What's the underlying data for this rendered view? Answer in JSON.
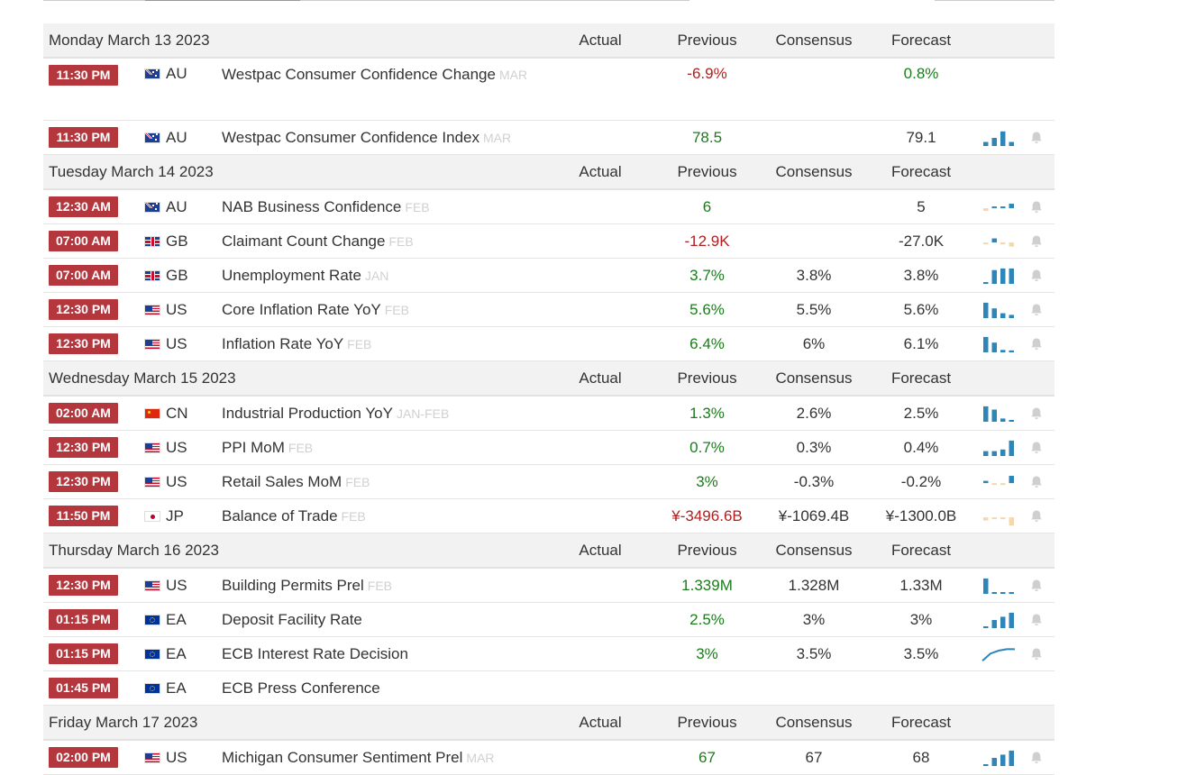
{
  "colors": {
    "accent_time": "#b5373e",
    "positive": "#1a7d1a",
    "negative": "#b01e1e",
    "chart_blue": "#2e86b8",
    "chart_peach": "#f5d7ae"
  },
  "days": [
    {
      "label": "Monday March 13 2023",
      "headers": {
        "actual": "Actual",
        "previous": "Previous",
        "consensus": "Consensus",
        "forecast": "Forecast"
      },
      "events": [
        {
          "time": "11:30 PM",
          "flag": "au",
          "country": "AU",
          "name": "Westpac Consumer Confidence Change",
          "ref": "MAR",
          "actual": "",
          "previous": "-6.9%",
          "previous_tone": "neg",
          "consensus": "",
          "forecast": "0.8%",
          "forecast_tone": "pos",
          "tall": true,
          "spark": [],
          "spark_kind": "none",
          "bell": false
        },
        {
          "time": "11:30 PM",
          "flag": "au",
          "country": "AU",
          "name": "Westpac Consumer Confidence Index",
          "ref": "MAR",
          "actual": "",
          "previous": "78.5",
          "previous_tone": "pos",
          "consensus": "",
          "forecast": "79.1",
          "forecast_tone": "neu",
          "spark": [
            0.25,
            0.5,
            0.9,
            0.25
          ],
          "spark_kind": "bars",
          "spark_colors": [
            "b",
            "b",
            "b",
            "b"
          ],
          "bell": true
        }
      ]
    },
    {
      "label": "Tuesday March 14 2023",
      "headers": {
        "actual": "Actual",
        "previous": "Previous",
        "consensus": "Consensus",
        "forecast": "Forecast"
      },
      "events": [
        {
          "time": "12:30 AM",
          "flag": "au",
          "country": "AU",
          "name": "NAB Business Confidence",
          "ref": "FEB",
          "actual": "",
          "previous": "6",
          "previous_tone": "pos",
          "consensus": "",
          "forecast": "5",
          "forecast_tone": "neu",
          "spark": [
            -0.3,
            0.2,
            0.0,
            0.5
          ],
          "spark_kind": "posneg",
          "bell": true
        },
        {
          "time": "07:00 AM",
          "flag": "gb",
          "country": "GB",
          "name": "Claimant Count Change",
          "ref": "FEB",
          "actual": "",
          "previous": "-12.9K",
          "previous_tone": "neg",
          "consensus": "",
          "forecast": "-27.0K",
          "forecast_tone": "neu",
          "spark": [
            -0.15,
            0.45,
            -0.2,
            -0.45
          ],
          "spark_kind": "posneg",
          "bell": true
        },
        {
          "time": "07:00 AM",
          "flag": "gb",
          "country": "GB",
          "name": "Unemployment Rate",
          "ref": "JAN",
          "actual": "",
          "previous": "3.7%",
          "previous_tone": "pos",
          "consensus": "3.8%",
          "forecast": "3.8%",
          "forecast_tone": "neu",
          "spark": [
            0.1,
            0.85,
            0.95,
            0.95
          ],
          "spark_kind": "bars",
          "spark_colors": [
            "b",
            "b",
            "b",
            "b"
          ],
          "bell": true
        },
        {
          "time": "12:30 PM",
          "flag": "us",
          "country": "US",
          "name": "Core Inflation Rate YoY",
          "ref": "FEB",
          "actual": "",
          "previous": "5.6%",
          "previous_tone": "pos",
          "consensus": "5.5%",
          "forecast": "5.6%",
          "forecast_tone": "neu",
          "spark": [
            0.95,
            0.6,
            0.3,
            0.2
          ],
          "spark_kind": "bars",
          "spark_colors": [
            "b",
            "b",
            "b",
            "b"
          ],
          "bell": true
        },
        {
          "time": "12:30 PM",
          "flag": "us",
          "country": "US",
          "name": "Inflation Rate YoY",
          "ref": "FEB",
          "actual": "",
          "previous": "6.4%",
          "previous_tone": "pos",
          "consensus": "6%",
          "forecast": "6.1%",
          "forecast_tone": "neu",
          "spark": [
            0.95,
            0.6,
            0.15,
            0.12
          ],
          "spark_kind": "bars",
          "spark_colors": [
            "b",
            "b",
            "b",
            "b"
          ],
          "bell": true
        }
      ]
    },
    {
      "label": "Wednesday March 15 2023",
      "headers": {
        "actual": "Actual",
        "previous": "Previous",
        "consensus": "Consensus",
        "forecast": "Forecast"
      },
      "events": [
        {
          "time": "02:00 AM",
          "flag": "cn",
          "country": "CN",
          "name": "Industrial Production YoY",
          "ref": "JAN-FEB",
          "actual": "",
          "previous": "1.3%",
          "previous_tone": "pos",
          "consensus": "2.6%",
          "forecast": "2.5%",
          "forecast_tone": "neu",
          "spark": [
            0.95,
            0.75,
            0.2,
            0.08
          ],
          "spark_kind": "bars",
          "spark_colors": [
            "b",
            "b",
            "b",
            "b"
          ],
          "bell": true
        },
        {
          "time": "12:30 PM",
          "flag": "us",
          "country": "US",
          "name": "PPI MoM",
          "ref": "FEB",
          "actual": "",
          "previous": "0.7%",
          "previous_tone": "pos",
          "consensus": "0.3%",
          "forecast": "0.4%",
          "forecast_tone": "neu",
          "spark": [
            0.3,
            0.3,
            0.4,
            0.95
          ],
          "spark_kind": "bars",
          "spark_colors": [
            "b",
            "b",
            "b",
            "b"
          ],
          "bell": true
        },
        {
          "time": "12:30 PM",
          "flag": "us",
          "country": "US",
          "name": "Retail Sales MoM",
          "ref": "FEB",
          "actual": "",
          "previous": "3%",
          "previous_tone": "pos",
          "consensus": "-0.3%",
          "forecast": "-0.2%",
          "forecast_tone": "neu",
          "spark": [
            0.25,
            -0.2,
            -0.2,
            0.8
          ],
          "spark_kind": "posneg",
          "bell": true
        },
        {
          "time": "11:50 PM",
          "flag": "jp",
          "country": "JP",
          "name": "Balance of Trade",
          "ref": "FEB",
          "actual": "",
          "previous": "¥-3496.6B",
          "previous_tone": "neg",
          "consensus": "¥-1069.4B",
          "forecast": "¥-1300.0B",
          "forecast_tone": "neu",
          "spark": [
            -0.35,
            -0.2,
            -0.15,
            -0.9
          ],
          "spark_kind": "posneg",
          "bell": true
        }
      ]
    },
    {
      "label": "Thursday March 16 2023",
      "headers": {
        "actual": "Actual",
        "previous": "Previous",
        "consensus": "Consensus",
        "forecast": "Forecast"
      },
      "events": [
        {
          "time": "12:30 PM",
          "flag": "us",
          "country": "US",
          "name": "Building Permits Prel",
          "ref": "FEB",
          "actual": "",
          "previous": "1.339M",
          "previous_tone": "pos",
          "consensus": "1.328M",
          "forecast": "1.33M",
          "forecast_tone": "neu",
          "spark": [
            0.95,
            0.08,
            0.08,
            0.08
          ],
          "spark_kind": "bars",
          "spark_colors": [
            "b",
            "b",
            "b",
            "b"
          ],
          "bell": true
        },
        {
          "time": "01:15 PM",
          "flag": "ea",
          "country": "EA",
          "name": "Deposit Facility Rate",
          "ref": "",
          "actual": "",
          "previous": "2.5%",
          "previous_tone": "pos",
          "consensus": "3%",
          "forecast": "3%",
          "forecast_tone": "neu",
          "spark": [
            0.1,
            0.5,
            0.7,
            0.95
          ],
          "spark_kind": "bars",
          "spark_colors": [
            "b",
            "b",
            "b",
            "b"
          ],
          "bell": true
        },
        {
          "time": "01:15 PM",
          "flag": "ea",
          "country": "EA",
          "name": "ECB Interest Rate Decision",
          "ref": "",
          "actual": "",
          "previous": "3%",
          "previous_tone": "pos",
          "consensus": "3.5%",
          "forecast": "3.5%",
          "forecast_tone": "neu",
          "spark": [
            0.05,
            0.55,
            0.75,
            0.85,
            0.85
          ],
          "spark_kind": "line",
          "bell": true
        },
        {
          "time": "01:45 PM",
          "flag": "ea",
          "country": "EA",
          "name": "ECB Press Conference",
          "ref": "",
          "actual": "",
          "previous": "",
          "previous_tone": "neu",
          "consensus": "",
          "forecast": "",
          "forecast_tone": "neu",
          "spark": [],
          "spark_kind": "none",
          "bell": false
        }
      ]
    },
    {
      "label": "Friday March 17 2023",
      "headers": {
        "actual": "Actual",
        "previous": "Previous",
        "consensus": "Consensus",
        "forecast": "Forecast"
      },
      "events": [
        {
          "time": "02:00 PM",
          "flag": "us",
          "country": "US",
          "name": "Michigan Consumer Sentiment Prel",
          "ref": "MAR",
          "actual": "",
          "previous": "67",
          "previous_tone": "pos",
          "consensus": "67",
          "forecast": "68",
          "forecast_tone": "neu",
          "spark": [
            0.1,
            0.5,
            0.7,
            0.95
          ],
          "spark_kind": "bars",
          "spark_colors": [
            "b",
            "b",
            "b",
            "b"
          ],
          "bell": true
        }
      ]
    }
  ]
}
